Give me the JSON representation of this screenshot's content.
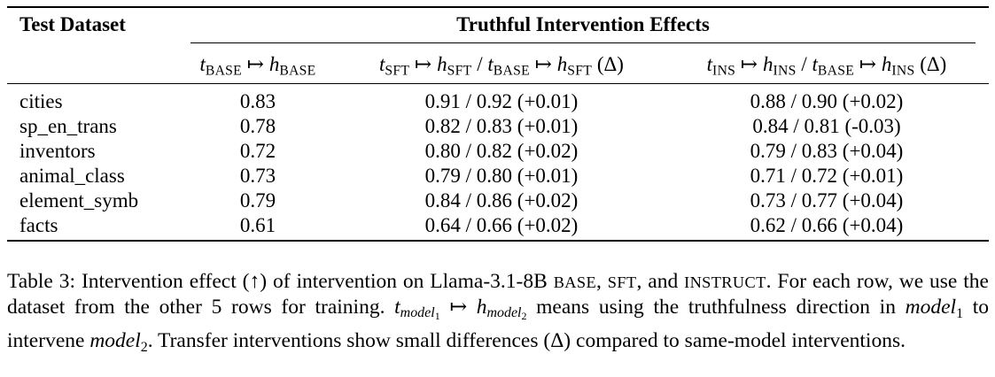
{
  "table": {
    "header": {
      "first": "Test Dataset",
      "group": "Truthful Intervention Effects",
      "columns": [
        [
          {
            "text": "t",
            "sub": "BASE",
            "style": "italic"
          },
          {
            "text": " ↦ "
          },
          {
            "text": "h",
            "sub": "BASE",
            "style": "italic"
          }
        ],
        [
          {
            "text": "t",
            "sub": "SFT",
            "style": "italic"
          },
          {
            "text": " ↦ "
          },
          {
            "text": "h",
            "sub": "SFT",
            "style": "italic"
          },
          {
            "text": " / "
          },
          {
            "text": "t",
            "sub": "BASE",
            "style": "italic"
          },
          {
            "text": " ↦ "
          },
          {
            "text": "h",
            "sub": "SFT",
            "style": "italic"
          },
          {
            "text": " (Δ)"
          }
        ],
        [
          {
            "text": "t",
            "sub": "INS",
            "style": "italic"
          },
          {
            "text": " ↦ "
          },
          {
            "text": "h",
            "sub": "INS",
            "style": "italic"
          },
          {
            "text": " / "
          },
          {
            "text": "t",
            "sub": "BASE",
            "style": "italic"
          },
          {
            "text": " ↦ "
          },
          {
            "text": "h",
            "sub": "INS",
            "style": "italic"
          },
          {
            "text": " (Δ)"
          }
        ]
      ]
    },
    "rows": [
      [
        "cities",
        "0.83",
        "0.91 / 0.92 (+0.01)",
        "0.88 / 0.90 (+0.02)"
      ],
      [
        "sp_en_trans",
        "0.78",
        "0.82 / 0.83 (+0.01)",
        "0.84 / 0.81 (-0.03)"
      ],
      [
        "inventors",
        "0.72",
        "0.80 / 0.82 (+0.02)",
        "0.79 / 0.83 (+0.04)"
      ],
      [
        "animal_class",
        "0.73",
        "0.79 / 0.80 (+0.01)",
        "0.71 / 0.72 (+0.01)"
      ],
      [
        "element_symb",
        "0.79",
        "0.84 / 0.86 (+0.02)",
        "0.73 / 0.77 (+0.04)"
      ],
      [
        "facts",
        "0.61",
        "0.64 / 0.66 (+0.02)",
        "0.62 / 0.66 (+0.04)"
      ]
    ]
  },
  "caption": [
    {
      "text": "Table 3: Intervention effect (↑) of intervention on Llama-3.1-8B "
    },
    {
      "text": "BASE",
      "style": "smallcaps"
    },
    {
      "text": ", "
    },
    {
      "text": "SFT",
      "style": "smallcaps"
    },
    {
      "text": ", and "
    },
    {
      "text": "INSTRUCT",
      "style": "smallcaps"
    },
    {
      "text": ". For each row, we use the dataset from the other 5 rows for training. "
    },
    {
      "text": "t",
      "sub": "model",
      "subsub": "1",
      "style": "italic"
    },
    {
      "text": " ↦ "
    },
    {
      "text": "h",
      "sub": "model",
      "subsub": "2",
      "style": "italic"
    },
    {
      "text": " means using the truthfulness direction in "
    },
    {
      "text": "model",
      "sub": "1",
      "style": "italic"
    },
    {
      "text": " to intervene "
    },
    {
      "text": "model",
      "sub": "2",
      "style": "italic"
    },
    {
      "text": ". Transfer interventions show small differences (Δ) compared to same-model interventions."
    }
  ]
}
